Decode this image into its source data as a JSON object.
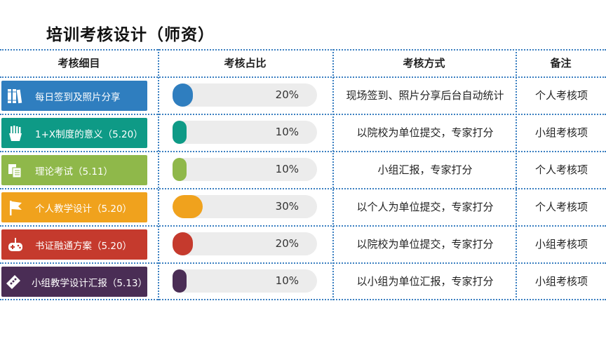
{
  "title": "培训考核设计（师资）",
  "headers": {
    "detail": "考核细目",
    "ratio": "考核占比",
    "method": "考核方式",
    "note": "备注"
  },
  "rows": [
    {
      "label": "每日签到及照片分享",
      "icon": "books-icon",
      "color": "#2f7ebf",
      "pct_text": "20%",
      "pct": 20,
      "method": "现场签到、照片分享后台自动统计",
      "note": "个人考核项"
    },
    {
      "label": "1+X制度的意义（5.20）",
      "icon": "fries-icon",
      "color": "#0e9a86",
      "pct_text": "10%",
      "pct": 10,
      "method": "以院校为单位提交，专家打分",
      "note": "小组考核项"
    },
    {
      "label": "理论考试（5.11）",
      "icon": "documents-icon",
      "color": "#8fb84a",
      "pct_text": "10%",
      "pct": 10,
      "method": "小组汇报，专家打分",
      "note": "个人考核项"
    },
    {
      "label": "个人教学设计（5.20）",
      "icon": "flag-icon",
      "color": "#f0a21d",
      "pct_text": "30%",
      "pct": 30,
      "method": "以个人为单位提交，专家打分",
      "note": "个人考核项"
    },
    {
      "label": "书证融通方案（5.20）",
      "icon": "gamepad-icon",
      "color": "#c53a2d",
      "pct_text": "20%",
      "pct": 20,
      "method": "以院校为单位提交，专家打分",
      "note": "小组考核项"
    },
    {
      "label": "小组教学设计汇报（5.13）",
      "icon": "ticket-icon",
      "color": "#4a2d55",
      "pct_text": "10%",
      "pct": 10,
      "method": "以小组为单位汇报，专家打分",
      "note": "小组考核项"
    }
  ]
}
